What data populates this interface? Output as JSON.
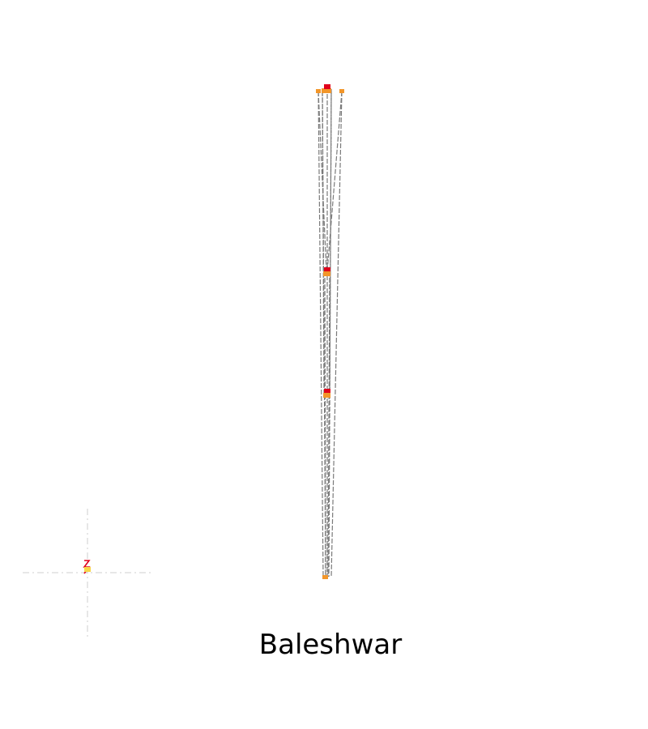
{
  "diagram": {
    "title": "Baleshwar",
    "colors": {
      "background": "#ffffff",
      "line": "#7a7a7a",
      "axis": "#cfcfcf",
      "marker_red": "#e0001b",
      "marker_orange": "#f2962a",
      "marker_yellow": "#f7d74a"
    }
  }
}
